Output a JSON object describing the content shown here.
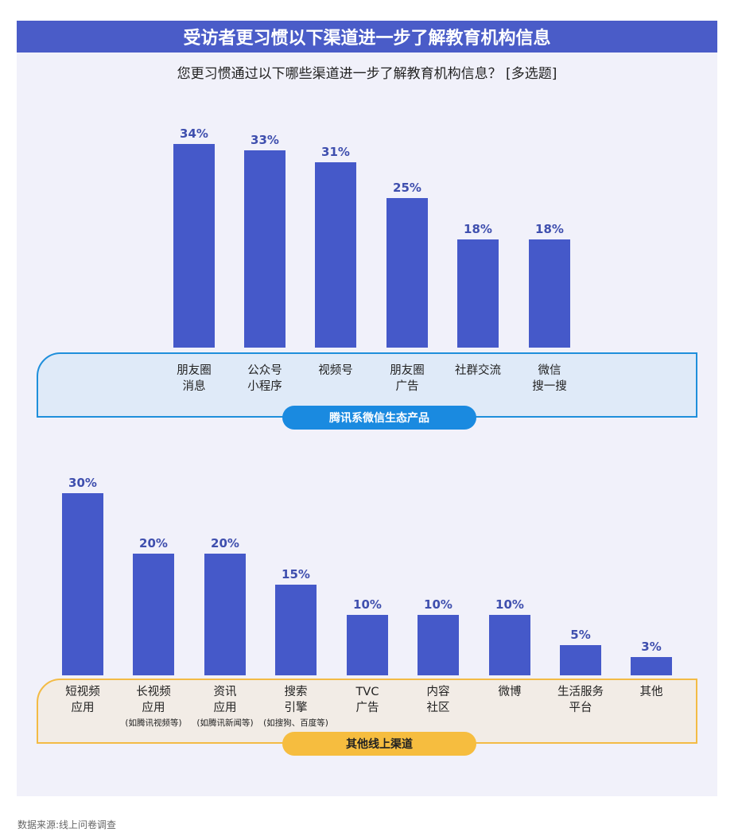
{
  "title": "受访者更习惯以下渠道进一步了解教育机构信息",
  "subtitle": "您更习惯通过以下哪些渠道进一步了解教育机构信息？ [多选题]",
  "source": "数据来源:线上问卷调查",
  "colors": {
    "bar": "#4559c9",
    "title_bg": "#4a5cc8",
    "group1_accent": "#1a8ae0",
    "group2_accent": "#f6bd3f"
  },
  "chart_data": [
    {
      "type": "bar",
      "group_label": "腾讯系微信生态产品",
      "categories": [
        {
          "lines": [
            "朋友圈",
            "消息"
          ],
          "note": ""
        },
        {
          "lines": [
            "公众号",
            "小程序"
          ],
          "note": ""
        },
        {
          "lines": [
            "视频号"
          ],
          "note": ""
        },
        {
          "lines": [
            "朋友圈",
            "广告"
          ],
          "note": ""
        },
        {
          "lines": [
            "社群交流"
          ],
          "note": ""
        },
        {
          "lines": [
            "微信",
            "搜一搜"
          ],
          "note": ""
        }
      ],
      "values": [
        34,
        33,
        31,
        25,
        18,
        18
      ],
      "value_labels": [
        "34%",
        "33%",
        "31%",
        "25%",
        "18%",
        "18%"
      ],
      "ylim": [
        0,
        34
      ]
    },
    {
      "type": "bar",
      "group_label": "其他线上渠道",
      "categories": [
        {
          "lines": [
            "短视频",
            "应用"
          ],
          "note": ""
        },
        {
          "lines": [
            "长视频",
            "应用"
          ],
          "note": "(如腾讯视频等)"
        },
        {
          "lines": [
            "资讯",
            "应用"
          ],
          "note": "(如腾讯新闻等)"
        },
        {
          "lines": [
            "搜索",
            "引擎"
          ],
          "note": "(如搜狗、百度等)"
        },
        {
          "lines": [
            "TVC",
            "广告"
          ],
          "note": ""
        },
        {
          "lines": [
            "内容",
            "社区"
          ],
          "note": ""
        },
        {
          "lines": [
            "微博"
          ],
          "note": ""
        },
        {
          "lines": [
            "生活服务",
            "平台"
          ],
          "note": ""
        },
        {
          "lines": [
            "其他"
          ],
          "note": ""
        }
      ],
      "values": [
        30,
        20,
        20,
        15,
        10,
        10,
        10,
        5,
        3
      ],
      "value_labels": [
        "30%",
        "20%",
        "20%",
        "15%",
        "10%",
        "10%",
        "10%",
        "5%",
        "3%"
      ],
      "ylim": [
        0,
        30
      ]
    }
  ]
}
